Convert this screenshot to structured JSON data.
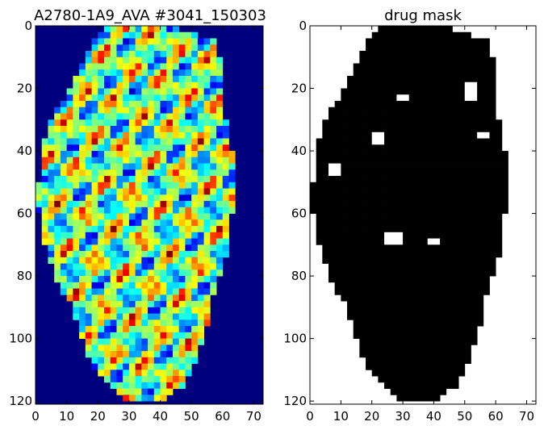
{
  "chart_data": [
    {
      "type": "heatmap",
      "title": "A2780-1A9_AVA #3041_150303",
      "xlabel": "",
      "ylabel": "",
      "xlim": [
        0,
        73
      ],
      "ylim": [
        121,
        0
      ],
      "xticks": [
        "0",
        "10",
        "20",
        "30",
        "40",
        "50",
        "60",
        "70"
      ],
      "yticks": [
        "0",
        "20",
        "40",
        "60",
        "80",
        "100",
        "120"
      ],
      "colormap": "jet",
      "grid": false,
      "description_of_content": "ion-intensity image of a tissue section; outside the section is background value"
    },
    {
      "type": "heatmap",
      "title": "drug mask",
      "xlabel": "",
      "ylabel": "",
      "xlim": [
        0,
        73
      ],
      "ylim": [
        121,
        0
      ],
      "xticks": [
        "0",
        "10",
        "20",
        "30",
        "40",
        "50",
        "60",
        "70"
      ],
      "yticks": [
        "0",
        "20",
        "40",
        "60",
        "80",
        "100",
        "120"
      ],
      "colormap": "gray_r",
      "grid": false
    }
  ],
  "colors": {
    "background": "#00007f",
    "mask_on": "#000000",
    "mask_off": "#ffffff"
  }
}
